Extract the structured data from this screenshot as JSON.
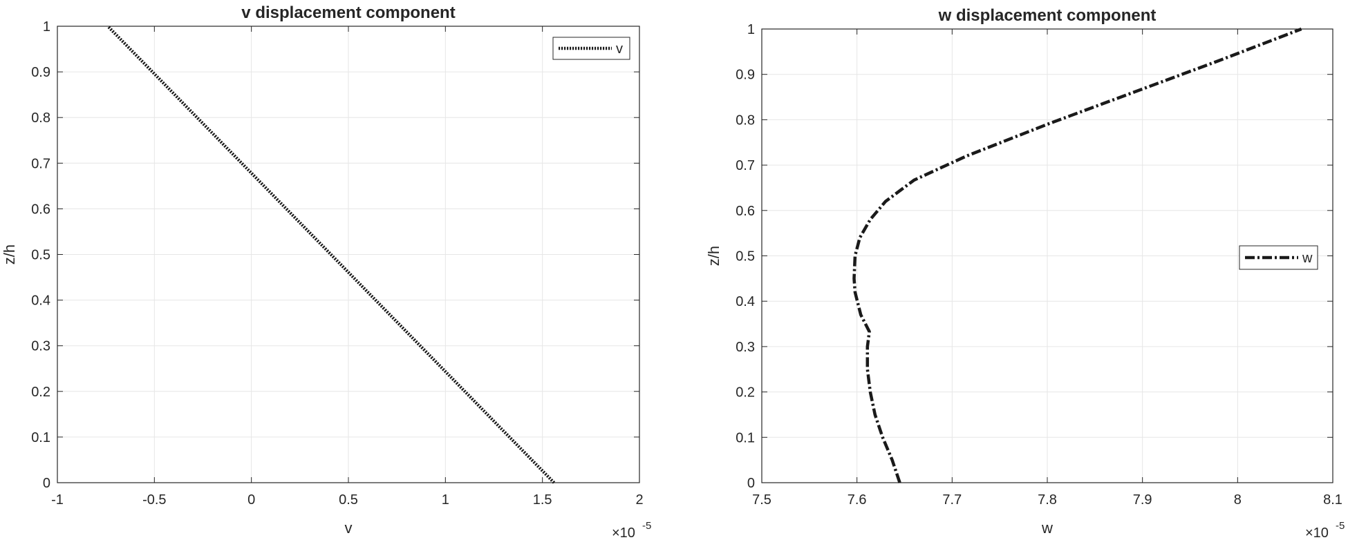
{
  "chart_data": [
    {
      "type": "line",
      "title": "v displacement component",
      "xlabel": "v",
      "ylabel": "z/h",
      "x_exponent": "×10",
      "x_exponent_power": "-5",
      "xlim": [
        -1,
        2
      ],
      "ylim": [
        0,
        1
      ],
      "xticks": [
        -1,
        -0.5,
        0,
        0.5,
        1,
        1.5,
        2
      ],
      "xtick_labels": [
        "-1",
        "-0.5",
        "0",
        "0.5",
        "1",
        "1.5",
        "2"
      ],
      "yticks": [
        0,
        0.1,
        0.2,
        0.3,
        0.4,
        0.5,
        0.6,
        0.7,
        0.8,
        0.9,
        1
      ],
      "ytick_labels": [
        "0",
        "0.1",
        "0.2",
        "0.3",
        "0.4",
        "0.5",
        "0.6",
        "0.7",
        "0.8",
        "0.9",
        "1"
      ],
      "grid": true,
      "legend_position": "top-right",
      "series": [
        {
          "name": "v",
          "style": "dotted",
          "color": "#1a1a1a",
          "x": [
            1.56,
            -0.74
          ],
          "y": [
            0,
            1
          ]
        }
      ]
    },
    {
      "type": "line",
      "title": "w displacement component",
      "xlabel": "w",
      "ylabel": "z/h",
      "x_exponent": "×10",
      "x_exponent_power": "-5",
      "xlim": [
        7.5,
        8.1
      ],
      "ylim": [
        0,
        1
      ],
      "xticks": [
        7.5,
        7.6,
        7.7,
        7.8,
        7.9,
        8.0,
        8.1
      ],
      "xtick_labels": [
        "7.5",
        "7.6",
        "7.7",
        "7.8",
        "7.9",
        "8",
        "8.1"
      ],
      "yticks": [
        0,
        0.1,
        0.2,
        0.3,
        0.4,
        0.5,
        0.6,
        0.7,
        0.8,
        0.9,
        1
      ],
      "ytick_labels": [
        "0",
        "0.1",
        "0.2",
        "0.3",
        "0.4",
        "0.5",
        "0.6",
        "0.7",
        "0.8",
        "0.9",
        "1"
      ],
      "grid": true,
      "legend_position": "right",
      "series": [
        {
          "name": "w",
          "style": "dash-dot",
          "color": "#1a1a1a",
          "x": [
            7.645,
            7.637,
            7.627,
            7.619,
            7.614,
            7.611,
            7.611,
            7.613,
            7.604,
            7.598,
            7.597,
            7.598,
            7.603,
            7.614,
            7.63,
            7.66,
            7.715,
            7.8,
            7.89,
            7.98,
            8.067
          ],
          "y": [
            0,
            0.05,
            0.1,
            0.15,
            0.2,
            0.25,
            0.3,
            0.333,
            0.37,
            0.42,
            0.45,
            0.5,
            0.54,
            0.58,
            0.62,
            0.667,
            0.72,
            0.79,
            0.86,
            0.93,
            1.0
          ]
        }
      ]
    }
  ]
}
